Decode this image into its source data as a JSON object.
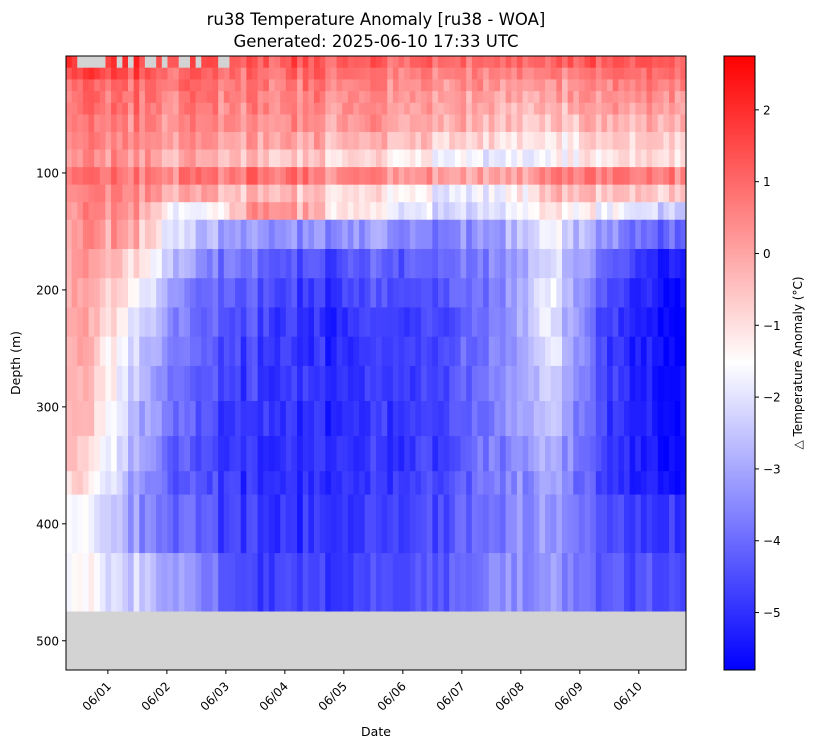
{
  "chart_data": {
    "type": "heatmap",
    "title": "ru38 Temperature Anomaly [ru38 - WOA]",
    "subtitle": "Generated: 2025-06-10 17:33 UTC",
    "xlabel": "Date",
    "ylabel": "Depth (m)",
    "colorbar_label": "△ Temperature Anomaly (°C)",
    "colormap": "bwr",
    "colors": {
      "low": "#0000ff",
      "mid": "#ffffff",
      "high": "#ff0000",
      "missing": "#d3d3d3"
    },
    "x_range": [
      "2025-05-31",
      "2025-06-10"
    ],
    "x_ticks": [
      "06/01",
      "06/02",
      "06/03",
      "06/04",
      "06/05",
      "06/06",
      "06/07",
      "06/08",
      "06/09",
      "06/10"
    ],
    "y_range": [
      0,
      525
    ],
    "y_inverted": true,
    "y_ticks": [
      "100",
      "200",
      "300",
      "400",
      "500"
    ],
    "color_range": [
      -5.8,
      2.75
    ],
    "colorbar_ticks": [
      "2",
      "1",
      "0",
      "−1",
      "−2",
      "−3",
      "−4",
      "−5"
    ],
    "data_depth_max": 475,
    "depth_bins": [
      0,
      10,
      20,
      30,
      40,
      50,
      65,
      80,
      95,
      110,
      125,
      140,
      165,
      190,
      215,
      240,
      265,
      295,
      325,
      355,
      375,
      425,
      475
    ],
    "profile_count": 110,
    "anomaly_profile_by_date": [
      {
        "date": "2025-05-31",
        "values": [
          2.3,
          1.8,
          1.2,
          1.0,
          0.9,
          0.8,
          0.6,
          0.5,
          1.0,
          0.7,
          0.6,
          0.4,
          0.3,
          0.2,
          0.2,
          0.1,
          0.0,
          -0.1,
          -0.3,
          -0.6,
          -1.2,
          -1.3
        ]
      },
      {
        "date": "2025-06-01",
        "values": [
          1.8,
          1.4,
          1.0,
          0.9,
          0.8,
          0.6,
          0.5,
          0.4,
          0.9,
          0.6,
          0.4,
          -0.1,
          -0.8,
          -1.4,
          -2.0,
          -2.3,
          -2.5,
          -2.7,
          -2.9,
          -3.2,
          -3.3,
          -2.4
        ]
      },
      {
        "date": "2025-06-02",
        "values": [
          1.4,
          1.0,
          0.8,
          0.7,
          0.5,
          0.4,
          0.1,
          -0.2,
          0.6,
          -0.3,
          -2.5,
          -3.0,
          -3.6,
          -4.0,
          -4.2,
          -4.3,
          -4.4,
          -4.5,
          -4.6,
          -4.6,
          -4.3,
          -3.6
        ]
      },
      {
        "date": "2025-06-03",
        "values": [
          1.2,
          0.9,
          0.7,
          0.6,
          0.5,
          0.4,
          0.0,
          -0.6,
          0.8,
          -0.4,
          0.6,
          -3.2,
          -4.0,
          -4.4,
          -4.6,
          -4.7,
          -4.8,
          -4.9,
          -5.0,
          -5.0,
          -4.9,
          -4.7
        ]
      },
      {
        "date": "2025-06-04",
        "values": [
          1.2,
          0.9,
          0.7,
          0.5,
          0.4,
          0.3,
          -0.1,
          -0.7,
          0.6,
          -0.6,
          -0.3,
          -3.4,
          -4.5,
          -4.9,
          -5.1,
          -5.1,
          -5.1,
          -5.1,
          -5.1,
          -5.1,
          -5.0,
          -4.8
        ]
      },
      {
        "date": "2025-06-05",
        "values": [
          1.1,
          0.8,
          0.5,
          0.4,
          0.3,
          0.2,
          -0.3,
          -1.0,
          0.5,
          -1.0,
          -1.5,
          -3.3,
          -4.3,
          -4.6,
          -4.8,
          -4.9,
          -4.9,
          -4.9,
          -4.9,
          -4.9,
          -4.8,
          -4.6
        ]
      },
      {
        "date": "2025-06-06",
        "values": [
          1.0,
          0.7,
          0.4,
          0.3,
          0.1,
          0.0,
          -0.5,
          -1.4,
          0.3,
          -1.6,
          -2.0,
          -3.6,
          -4.2,
          -4.4,
          -4.6,
          -4.6,
          -4.7,
          -4.7,
          -4.7,
          -4.7,
          -4.6,
          -4.4
        ]
      },
      {
        "date": "2025-06-07",
        "values": [
          0.9,
          0.6,
          0.3,
          0.1,
          -0.1,
          -0.3,
          -0.9,
          -1.8,
          0.0,
          -1.9,
          -2.2,
          -3.2,
          -3.6,
          -3.7,
          -3.8,
          -3.8,
          -3.8,
          -3.8,
          -3.8,
          -3.8,
          -3.7,
          -3.6
        ]
      },
      {
        "date": "2025-06-08",
        "values": [
          1.0,
          0.6,
          0.2,
          0.0,
          -0.3,
          -0.6,
          -1.1,
          -1.6,
          0.6,
          -0.5,
          -0.9,
          -1.8,
          -2.0,
          -1.6,
          -1.8,
          -1.9,
          -2.3,
          -2.5,
          -2.7,
          -3.0,
          -3.2,
          -3.1
        ]
      },
      {
        "date": "2025-06-09",
        "values": [
          1.1,
          0.8,
          0.4,
          0.2,
          0.0,
          -0.3,
          -0.8,
          -1.2,
          0.5,
          -0.6,
          -1.8,
          -3.6,
          -4.4,
          -4.7,
          -4.9,
          -4.9,
          -4.9,
          -4.9,
          -4.9,
          -4.9,
          -4.6,
          -4.4
        ]
      },
      {
        "date": "2025-06-10",
        "values": [
          1.2,
          0.9,
          0.6,
          0.3,
          0.1,
          -0.2,
          -0.6,
          -1.0,
          0.5,
          -0.7,
          -2.5,
          -4.2,
          -5.3,
          -5.6,
          -5.7,
          -5.7,
          -5.7,
          -5.6,
          -5.6,
          -5.6,
          -5.0,
          -4.6
        ]
      }
    ]
  }
}
